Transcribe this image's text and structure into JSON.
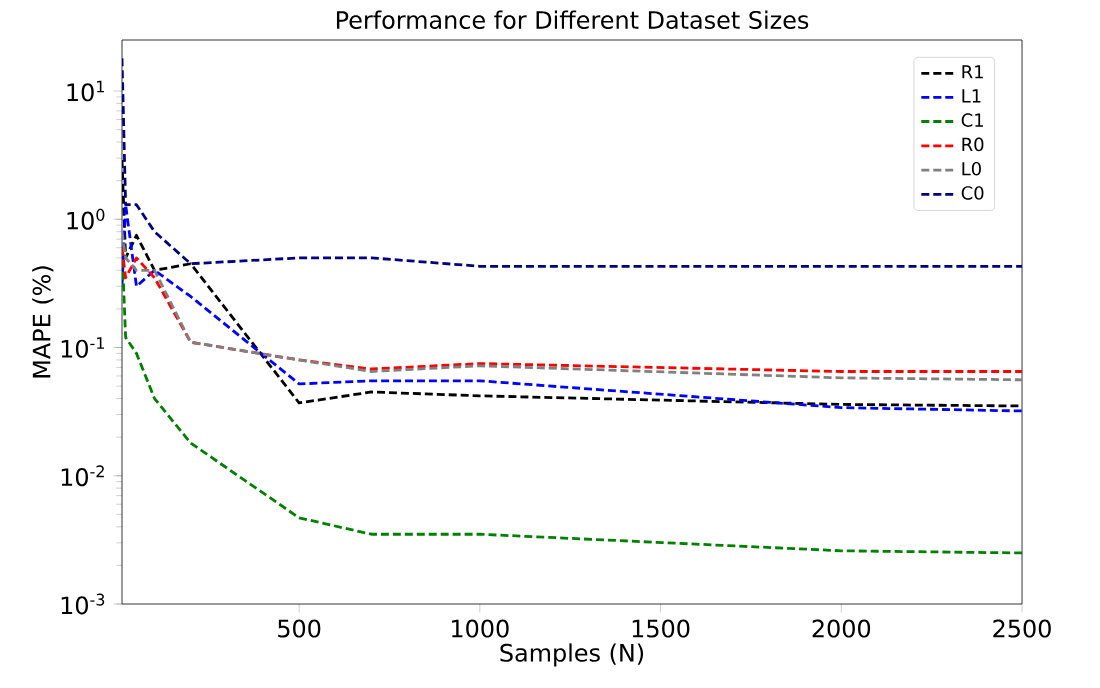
{
  "chart_data": {
    "type": "line",
    "title": "Performance for Different Dataset Sizes",
    "xlabel": "Samples (N)",
    "ylabel": "MAPE (%)",
    "x": [
      10,
      20,
      50,
      100,
      200,
      500,
      700,
      1000,
      2000,
      2500
    ],
    "series": [
      {
        "name": "R1",
        "color": "#000000",
        "values": [
          2.9,
          0.5,
          0.75,
          0.4,
          0.45,
          0.037,
          0.045,
          0.042,
          0.036,
          0.035
        ]
      },
      {
        "name": "L1",
        "color": "#0000ff",
        "values": [
          0.3,
          1.3,
          0.3,
          0.4,
          0.25,
          0.052,
          0.055,
          0.055,
          0.034,
          0.032
        ]
      },
      {
        "name": "C1",
        "color": "#008000",
        "values": [
          0.6,
          0.12,
          0.09,
          0.04,
          0.018,
          0.0047,
          0.0035,
          0.0035,
          0.0026,
          0.0025
        ]
      },
      {
        "name": "R0",
        "color": "#ff0000",
        "values": [
          0.6,
          0.35,
          0.5,
          0.35,
          0.11,
          0.08,
          0.068,
          0.075,
          0.065,
          0.065
        ]
      },
      {
        "name": "L0",
        "color": "#808080",
        "values": [
          0.8,
          0.5,
          0.4,
          0.4,
          0.11,
          0.08,
          0.065,
          0.072,
          0.058,
          0.056
        ]
      },
      {
        "name": "C0",
        "color": "#000080",
        "values": [
          18,
          1.3,
          1.3,
          0.8,
          0.45,
          0.5,
          0.5,
          0.43,
          0.43,
          0.43
        ]
      }
    ],
    "log": "y",
    "xlim": [
      10,
      2500
    ],
    "ylim": [
      0.001,
      25
    ],
    "xticks": [
      500,
      1000,
      1500,
      2000,
      2500
    ],
    "yticks": [
      {
        "value": 0.001,
        "label": "10$^{-3}$"
      },
      {
        "value": 0.01,
        "label": "10$^{-2}$"
      },
      {
        "value": 0.1,
        "label": "10$^{-1}$"
      },
      {
        "value": 1,
        "label": "10$^{0}$"
      },
      {
        "value": 10,
        "label": "10$^{1}$"
      }
    ],
    "grid": false,
    "legend": "top right",
    "line_style": "dashed",
    "marker": "none"
  }
}
